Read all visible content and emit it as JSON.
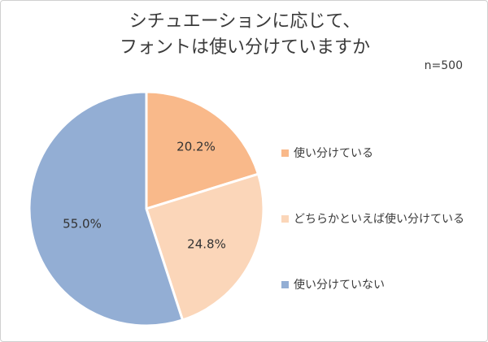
{
  "title_lines": [
    "シチュエーションに応じて、",
    "フォントは使い分けていますか"
  ],
  "sample_size": "n=500",
  "chart_data": {
    "type": "pie",
    "title": "シチュエーションに応じて、フォントは使い分けていますか",
    "subtitle": "n=500",
    "categories": [
      "使い分けている",
      "どちらかといえば使い分けている",
      "使い分けていない"
    ],
    "values": [
      20.2,
      24.8,
      55.0
    ],
    "value_labels": [
      "20.2%",
      "24.8%",
      "55.0%"
    ],
    "colors": [
      "#f9b98a",
      "#fbd6b9",
      "#93aed4"
    ],
    "start_angle": "12 o'clock, clockwise",
    "legend_position": "right"
  }
}
